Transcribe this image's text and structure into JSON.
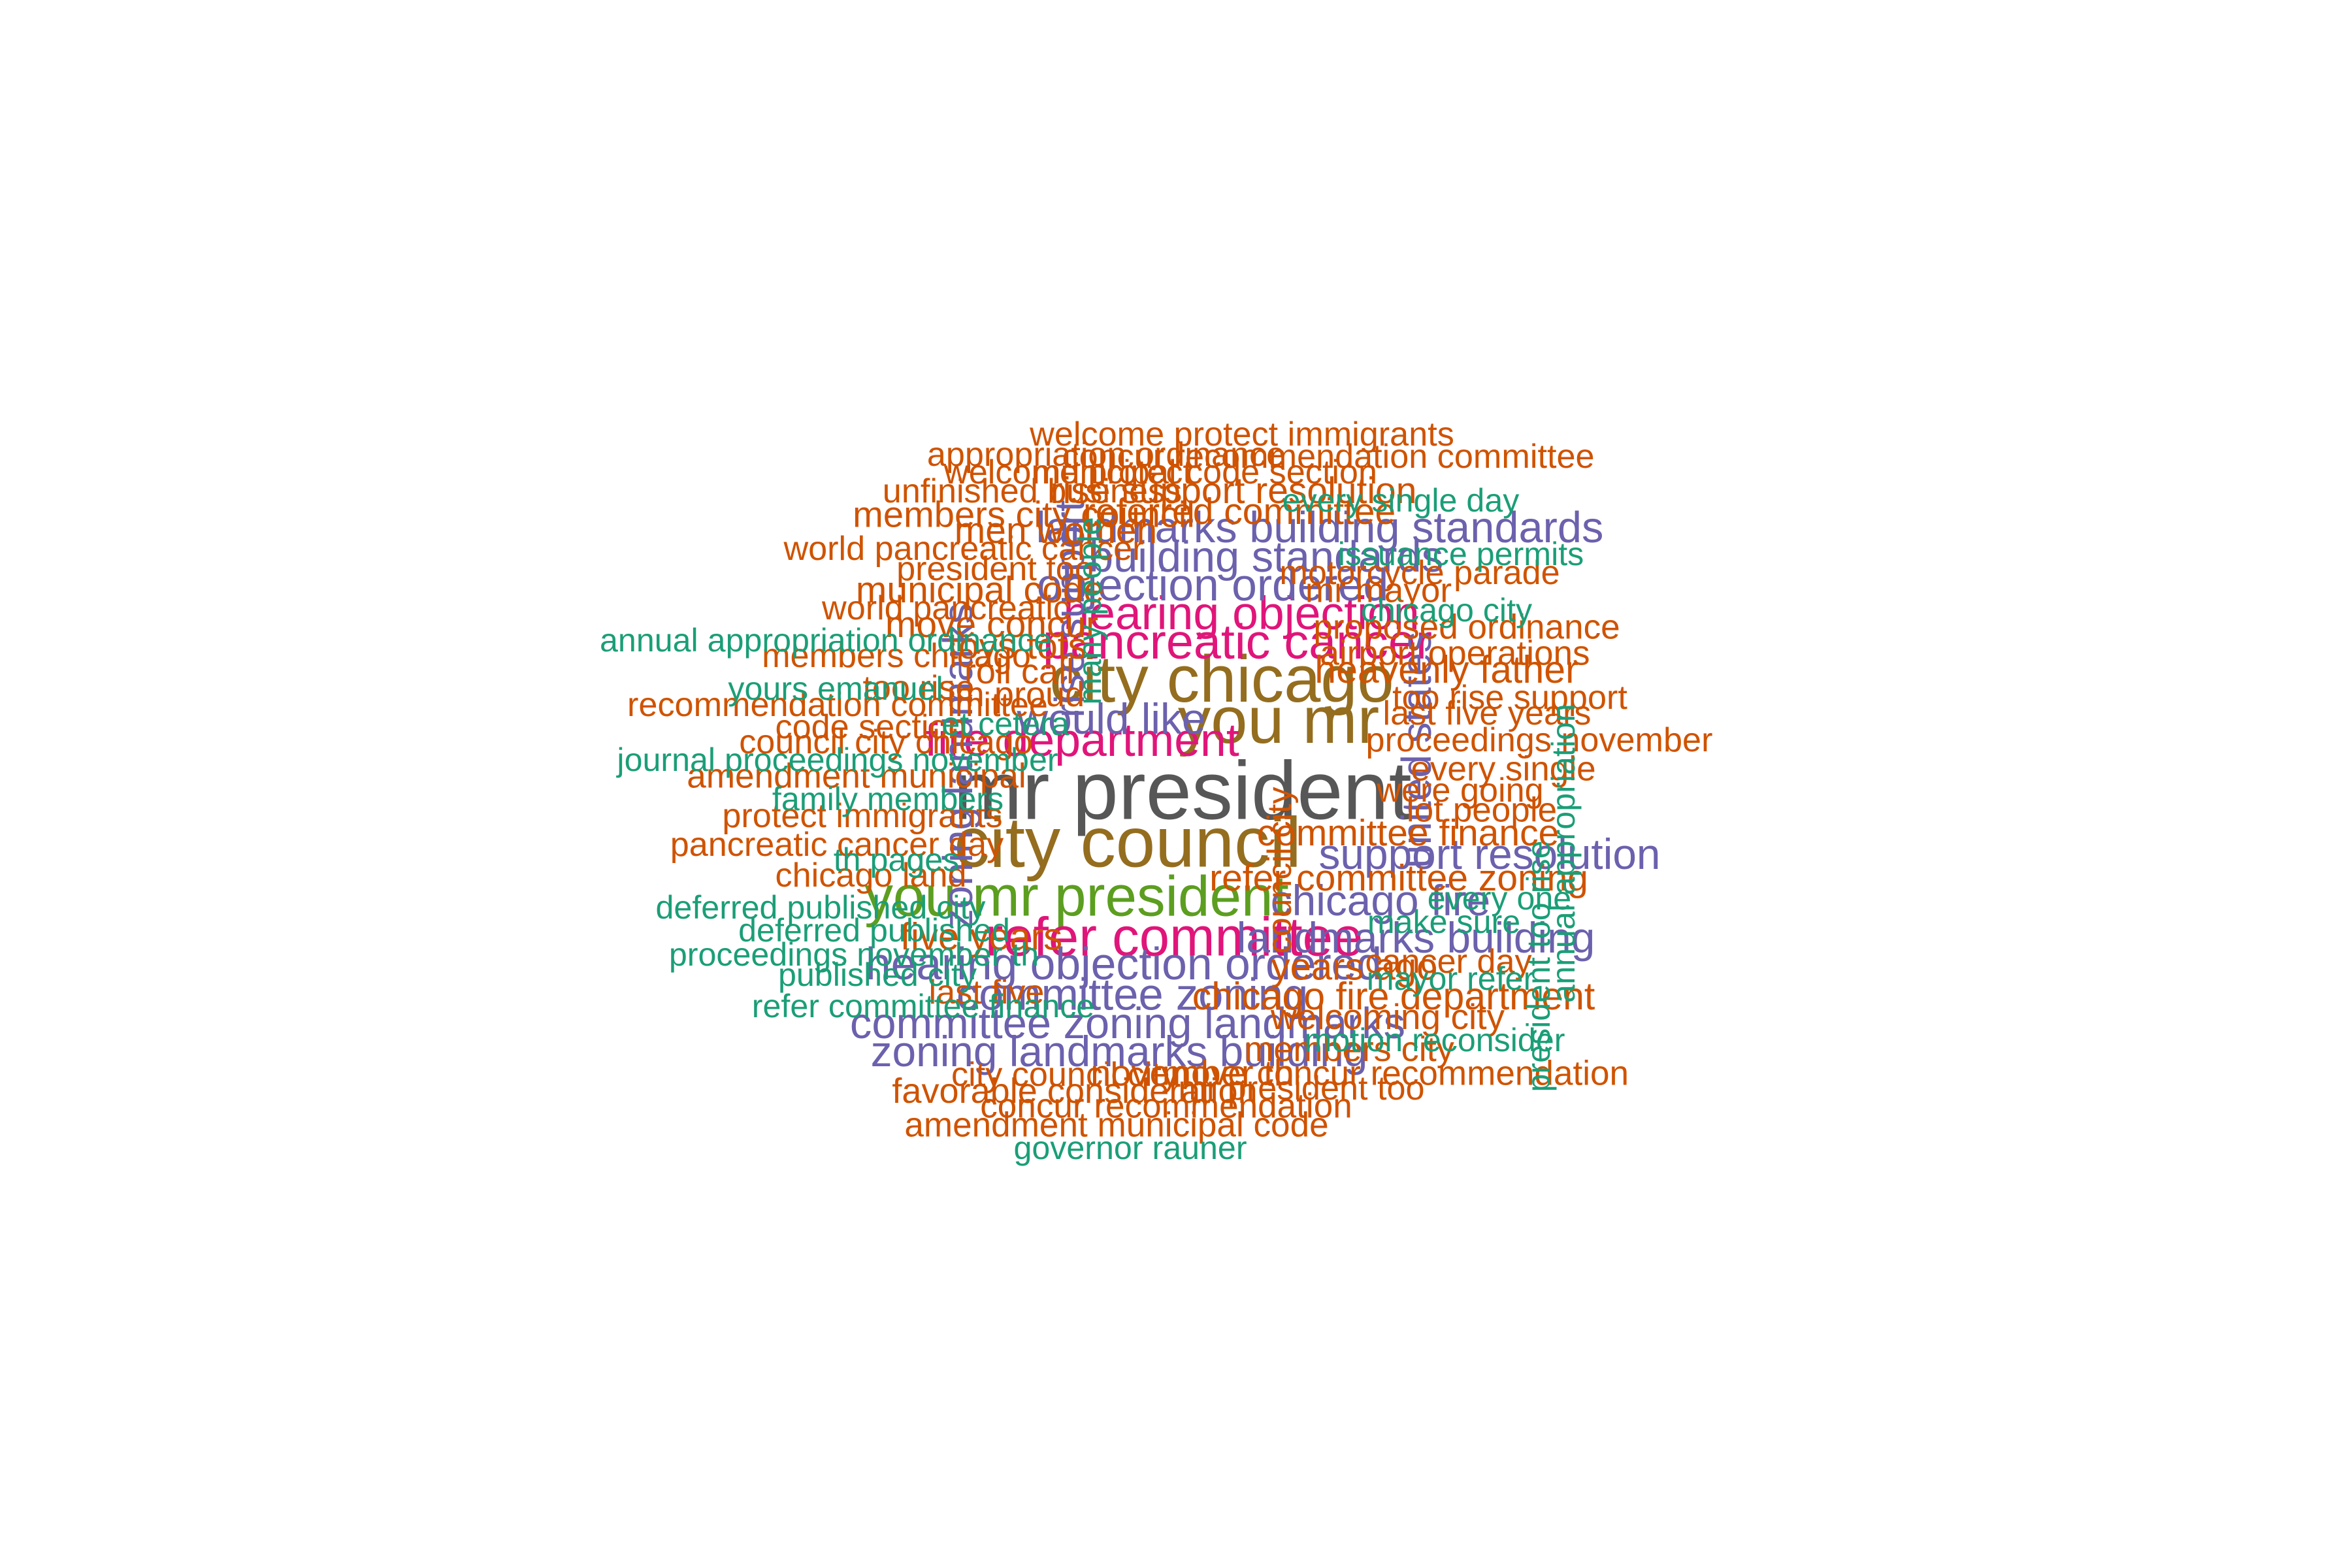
{
  "colors": {
    "gray": "#575757",
    "brown": "#946d1f",
    "purple": "#6b61ad",
    "green": "#5c9e20",
    "magenta": "#e0157a",
    "orange": "#cf5300",
    "teal": "#1b9e77"
  },
  "words": [
    {
      "text": "mr president",
      "color": "gray",
      "weight": 1.0
    },
    {
      "text": "city council",
      "color": "brown",
      "weight": 0.82
    },
    {
      "text": "city chicago",
      "color": "brown",
      "weight": 0.74
    },
    {
      "text": "you mr",
      "color": "brown",
      "weight": 0.74
    },
    {
      "text": "you mr president",
      "color": "green",
      "weight": 0.6
    },
    {
      "text": "refer committee",
      "color": "magenta",
      "weight": 0.56
    },
    {
      "text": "pancreatic cancer",
      "color": "magenta",
      "weight": 0.48
    },
    {
      "text": "hearing objection",
      "color": "magenta",
      "weight": 0.44
    },
    {
      "text": "fire department",
      "color": "magenta",
      "weight": 0.44
    },
    {
      "text": "hearing objection ordered",
      "color": "purple",
      "weight": 0.42
    },
    {
      "text": "objection ordered",
      "color": "purple",
      "weight": 0.42
    },
    {
      "text": "landmarks building standards",
      "color": "purple",
      "weight": 0.39
    },
    {
      "text": "building standards",
      "color": "purple",
      "weight": 0.39
    },
    {
      "text": "committee zoning",
      "color": "purple",
      "weight": 0.41
    },
    {
      "text": "committee zoning landmarks",
      "color": "purple",
      "weight": 0.39
    },
    {
      "text": "zoning landmarks building",
      "color": "purple",
      "weight": 0.38
    },
    {
      "text": "landmarks building",
      "color": "purple",
      "weight": 0.38
    },
    {
      "text": "support resolution",
      "color": "purple",
      "weight": 0.38
    },
    {
      "text": "chicago fire",
      "color": "purple",
      "weight": 0.38
    },
    {
      "text": "would like",
      "color": "purple",
      "weight": 0.38
    },
    {
      "text": "zoning landmarks",
      "color": "purple",
      "weight": 0.36
    },
    {
      "text": "rise support",
      "color": "purple",
      "weight": 0.36
    },
    {
      "text": "united states",
      "color": "purple",
      "weight": 0.36
    },
    {
      "text": "heavenly father",
      "color": "orange",
      "weight": 0.31
    },
    {
      "text": "chicago fire department",
      "color": "orange",
      "weight": 0.31
    },
    {
      "text": "committee finance",
      "color": "orange",
      "weight": 0.29
    },
    {
      "text": "refer committee zoning",
      "color": "orange",
      "weight": 0.29
    },
    {
      "text": "years ago",
      "color": "orange",
      "weight": 0.3
    },
    {
      "text": "five years",
      "color": "orange",
      "weight": 0.3
    },
    {
      "text": "rise support resolution",
      "color": "orange",
      "weight": 0.29
    },
    {
      "text": "referred committee",
      "color": "orange",
      "weight": 0.29
    },
    {
      "text": "members city council",
      "color": "orange",
      "weight": 0.28
    },
    {
      "text": "men women",
      "color": "orange",
      "weight": 0.29
    },
    {
      "text": "municipal code",
      "color": "orange",
      "weight": 0.29
    },
    {
      "text": "move concur",
      "color": "orange",
      "weight": 0.29
    },
    {
      "text": "toys tots",
      "color": "orange",
      "weight": 0.29
    },
    {
      "text": "november th",
      "color": "orange",
      "weight": 0.28
    },
    {
      "text": "welcoming city",
      "color": "orange",
      "weight": 0.27
    },
    {
      "text": "favorable consideration",
      "color": "orange",
      "weight": 0.26
    },
    {
      "text": "members city",
      "color": "orange",
      "weight": 0.26
    },
    {
      "text": "move concur recommendation",
      "color": "orange",
      "weight": 0.25
    },
    {
      "text": "concur recommendation",
      "color": "orange",
      "weight": 0.25
    },
    {
      "text": "amendment municipal code",
      "color": "orange",
      "weight": 0.25
    },
    {
      "text": "city council city",
      "color": "orange",
      "weight": 0.24
    },
    {
      "text": "mr president too",
      "color": "orange",
      "weight": 0.24
    },
    {
      "text": "welcome protect immigrants",
      "color": "orange",
      "weight": 0.24
    },
    {
      "text": "appropriation ordinance",
      "color": "orange",
      "weight": 0.24
    },
    {
      "text": "concur recommendation committee",
      "color": "orange",
      "weight": 0.24
    },
    {
      "text": "welcome protect",
      "color": "orange",
      "weight": 0.24
    },
    {
      "text": "municipal code section",
      "color": "orange",
      "weight": 0.24
    },
    {
      "text": "unfinished business",
      "color": "orange",
      "weight": 0.24
    },
    {
      "text": "world pancreatic cancer",
      "color": "orange",
      "weight": 0.24
    },
    {
      "text": "president too",
      "color": "orange",
      "weight": 0.24
    },
    {
      "text": "world pancreatic",
      "color": "orange",
      "weight": 0.24
    },
    {
      "text": "members chicago",
      "color": "orange",
      "weight": 0.24
    },
    {
      "text": "roll call",
      "color": "orange",
      "weight": 0.26
    },
    {
      "text": "im proud",
      "color": "orange",
      "weight": 0.26
    },
    {
      "text": "too rise",
      "color": "orange",
      "weight": 0.24
    },
    {
      "text": "recommendation committee",
      "color": "orange",
      "weight": 0.24
    },
    {
      "text": "code section",
      "color": "orange",
      "weight": 0.24
    },
    {
      "text": "council city chicago",
      "color": "orange",
      "weight": 0.24
    },
    {
      "text": "amendment municipal",
      "color": "orange",
      "weight": 0.25
    },
    {
      "text": "protect immigrants",
      "color": "orange",
      "weight": 0.24
    },
    {
      "text": "pancreatic cancer day",
      "color": "orange",
      "weight": 0.24
    },
    {
      "text": "chicago land",
      "color": "orange",
      "weight": 0.24
    },
    {
      "text": "last five",
      "color": "orange",
      "weight": 0.24
    },
    {
      "text": "mr mayor",
      "color": "orange",
      "weight": 0.25
    },
    {
      "text": "motorcycle parade",
      "color": "orange",
      "weight": 0.24
    },
    {
      "text": "proposed ordinance",
      "color": "orange",
      "weight": 0.25
    },
    {
      "text": "airport operations",
      "color": "orange",
      "weight": 0.25
    },
    {
      "text": "too rise support",
      "color": "orange",
      "weight": 0.24
    },
    {
      "text": "last five years",
      "color": "orange",
      "weight": 0.24
    },
    {
      "text": "proceedings november",
      "color": "orange",
      "weight": 0.24
    },
    {
      "text": "every single",
      "color": "orange",
      "weight": 0.25
    },
    {
      "text": "were going",
      "color": "orange",
      "weight": 0.24
    },
    {
      "text": "lot people",
      "color": "orange",
      "weight": 0.25
    },
    {
      "text": "cancer day",
      "color": "orange",
      "weight": 0.24
    },
    {
      "text": "council city",
      "color": "orange",
      "weight": 0.24
    },
    {
      "text": "every single day",
      "color": "teal",
      "weight": 0.22
    },
    {
      "text": "issuance permits",
      "color": "teal",
      "weight": 0.22
    },
    {
      "text": "chicago city",
      "color": "teal",
      "weight": 0.22
    },
    {
      "text": "many people",
      "color": "teal",
      "weight": 0.22
    },
    {
      "text": "annual appropriation ordinance",
      "color": "teal",
      "weight": 0.22
    },
    {
      "text": "yours emanuel",
      "color": "teal",
      "weight": 0.22
    },
    {
      "text": "et cetera",
      "color": "teal",
      "weight": 0.22
    },
    {
      "text": "journal proceedings november",
      "color": "teal",
      "weight": 0.22
    },
    {
      "text": "family members",
      "color": "teal",
      "weight": 0.22
    },
    {
      "text": "th pages",
      "color": "teal",
      "weight": 0.22
    },
    {
      "text": "deferred published city",
      "color": "teal",
      "weight": 0.22
    },
    {
      "text": "deferred published",
      "color": "teal",
      "weight": 0.22
    },
    {
      "text": "proceedings november th",
      "color": "teal",
      "weight": 0.22
    },
    {
      "text": "published city",
      "color": "teal",
      "weight": 0.22
    },
    {
      "text": "refer committee finance",
      "color": "teal",
      "weight": 0.22
    },
    {
      "text": "make sure",
      "color": "teal",
      "weight": 0.22
    },
    {
      "text": "every one",
      "color": "teal",
      "weight": 0.22
    },
    {
      "text": "mayor refer",
      "color": "teal",
      "weight": 0.22
    },
    {
      "text": "motion reconsider",
      "color": "teal",
      "weight": 0.22
    },
    {
      "text": "annual appropriation",
      "color": "teal",
      "weight": 0.22
    },
    {
      "text": "president too rise",
      "color": "teal",
      "weight": 0.22
    },
    {
      "text": "governor rauner",
      "color": "teal",
      "weight": 0.22
    }
  ]
}
